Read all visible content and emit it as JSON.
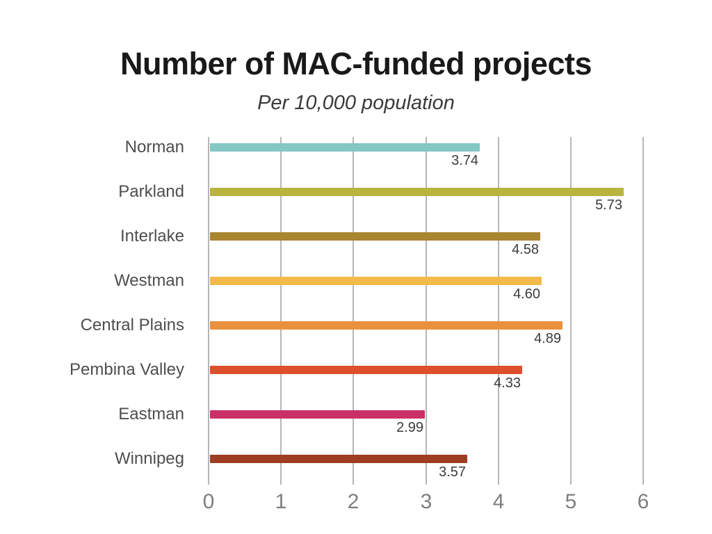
{
  "header": {
    "title": "Number of MAC-funded projects",
    "subtitle": "Per 10,000 population"
  },
  "chart_data": {
    "type": "bar",
    "orientation": "horizontal",
    "title": "Number of MAC-funded projects",
    "subtitle": "Per 10,000 population",
    "categories": [
      "Norman",
      "Parkland",
      "Interlake",
      "Westman",
      "Central Plains",
      "Pembina Valley",
      "Eastman",
      "Winnipeg"
    ],
    "values": [
      3.74,
      5.73,
      4.58,
      4.6,
      4.89,
      4.33,
      2.99,
      3.57
    ],
    "value_labels": [
      "3.74",
      "5.73",
      "4.58",
      "4.60",
      "4.89",
      "4.33",
      "2.99",
      "3.57"
    ],
    "bar_colors": [
      "#84c7c3",
      "#b9b43f",
      "#a9852f",
      "#f3b94a",
      "#e9913e",
      "#de4f2e",
      "#cb2f68",
      "#9d3e23"
    ],
    "xlabel": "",
    "ylabel": "",
    "xlim": [
      0,
      6
    ],
    "x_ticks": [
      "0",
      "1",
      "2",
      "3",
      "4",
      "5",
      "6"
    ],
    "grid": "vertical-only",
    "legend": "none",
    "styles": {
      "background": "#ffffff",
      "gridline_color": "#b6b6b6",
      "title_color": "#191919",
      "subtitle_color": "#3a3a3a",
      "category_label_color": "#4e4e4e",
      "value_label_color": "#3b3b3b",
      "tick_label_color": "#7e7e7e"
    }
  }
}
